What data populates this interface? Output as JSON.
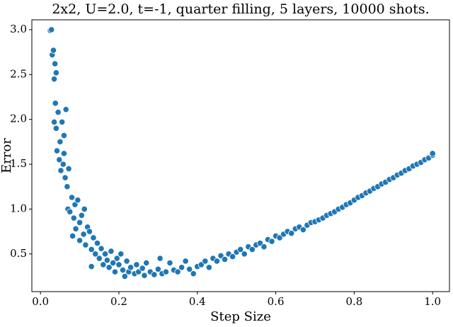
{
  "chart_data": {
    "type": "scatter",
    "title": "2x2, U=2.0, t=-1, quarter filling, 5 layers, 10000 shots.",
    "x_label": "Step Size",
    "y_label": "Error",
    "xlim": [
      -0.022,
      1.043
    ],
    "ylim": [
      0.08,
      3.11
    ],
    "xticks": [
      {
        "value": 0,
        "label": "0.0"
      },
      0.2,
      0.4,
      0.6,
      0.8,
      {
        "value": 1,
        "label": "1.0"
      }
    ],
    "yticks": [
      0.5,
      {
        "value": 1,
        "label": "1.0"
      },
      1.5,
      {
        "value": 2,
        "label": "2.0"
      },
      2.5,
      {
        "value": 3,
        "label": "3.0"
      }
    ],
    "series": [
      {
        "color": "#1f77b4",
        "x": [
          0.025,
          0.028,
          0.03,
          0.033,
          0.035,
          0.037,
          0.04,
          0.038,
          0.035,
          0.04,
          0.045,
          0.05,
          0.042,
          0.048,
          0.052,
          0.055,
          0.06,
          0.065,
          0.058,
          0.06,
          0.063,
          0.068,
          0.07,
          0.072,
          0.075,
          0.08,
          0.082,
          0.085,
          0.088,
          0.09,
          0.095,
          0.1,
          0.1,
          0.105,
          0.11,
          0.112,
          0.115,
          0.12,
          0.125,
          0.13,
          0.13,
          0.135,
          0.14,
          0.145,
          0.15,
          0.155,
          0.16,
          0.165,
          0.17,
          0.175,
          0.18,
          0.185,
          0.19,
          0.195,
          0.2,
          0.205,
          0.21,
          0.215,
          0.22,
          0.225,
          0.23,
          0.24,
          0.245,
          0.25,
          0.26,
          0.265,
          0.27,
          0.28,
          0.29,
          0.3,
          0.305,
          0.31,
          0.32,
          0.33,
          0.34,
          0.35,
          0.36,
          0.37,
          0.38,
          0.39,
          0.4,
          0.41,
          0.42,
          0.43,
          0.44,
          0.45,
          0.46,
          0.47,
          0.48,
          0.49,
          0.5,
          0.51,
          0.52,
          0.53,
          0.54,
          0.55,
          0.56,
          0.57,
          0.58,
          0.59,
          0.6,
          0.61,
          0.62,
          0.63,
          0.64,
          0.65,
          0.66,
          0.67,
          0.68,
          0.69,
          0.7,
          0.71,
          0.72,
          0.73,
          0.74,
          0.75,
          0.76,
          0.77,
          0.78,
          0.79,
          0.8,
          0.81,
          0.82,
          0.83,
          0.84,
          0.85,
          0.86,
          0.87,
          0.88,
          0.89,
          0.9,
          0.91,
          0.92,
          0.93,
          0.94,
          0.95,
          0.96,
          0.97,
          0.98,
          0.99,
          1.0,
          1.0
        ],
        "values": [
          2.99,
          3.0,
          2.72,
          2.77,
          2.45,
          2.62,
          2.52,
          2.18,
          1.97,
          1.9,
          2.08,
          1.75,
          1.65,
          1.55,
          1.43,
          1.97,
          1.82,
          2.11,
          1.5,
          1.62,
          1.35,
          1.25,
          1.0,
          1.45,
          0.97,
          1.13,
          0.7,
          0.9,
          1.05,
          0.78,
          1.1,
          0.85,
          0.65,
          0.93,
          0.72,
          1.0,
          0.6,
          0.8,
          0.75,
          0.55,
          0.36,
          0.68,
          0.5,
          0.62,
          0.45,
          0.56,
          0.38,
          0.5,
          0.43,
          0.35,
          0.53,
          0.4,
          0.3,
          0.45,
          0.38,
          0.5,
          0.32,
          0.25,
          0.42,
          0.3,
          0.35,
          0.28,
          0.38,
          0.3,
          0.34,
          0.26,
          0.4,
          0.3,
          0.27,
          0.33,
          0.45,
          0.28,
          0.3,
          0.4,
          0.32,
          0.3,
          0.35,
          0.42,
          0.33,
          0.28,
          0.36,
          0.38,
          0.42,
          0.35,
          0.45,
          0.42,
          0.48,
          0.44,
          0.5,
          0.47,
          0.52,
          0.55,
          0.5,
          0.58,
          0.55,
          0.6,
          0.62,
          0.58,
          0.66,
          0.64,
          0.7,
          0.68,
          0.72,
          0.75,
          0.73,
          0.78,
          0.8,
          0.77,
          0.82,
          0.85,
          0.86,
          0.88,
          0.9,
          0.93,
          0.95,
          0.97,
          1.0,
          1.02,
          1.05,
          1.07,
          1.1,
          1.13,
          1.15,
          1.18,
          1.2,
          1.23,
          1.25,
          1.28,
          1.3,
          1.33,
          1.35,
          1.38,
          1.4,
          1.43,
          1.45,
          1.48,
          1.5,
          1.52,
          1.55,
          1.57,
          1.6,
          1.62
        ]
      }
    ]
  }
}
